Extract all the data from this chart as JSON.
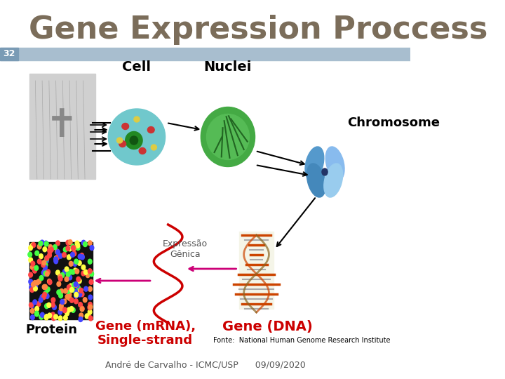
{
  "title": "Gene Expression Proccess",
  "title_color": "#7B6D5A",
  "title_fontsize": 32,
  "slide_number": "32",
  "slide_number_bg": "#7A9BB5",
  "slide_number_color": "white",
  "header_bar_color": "#A8BECF",
  "label_cell": "Cell",
  "label_nuclei": "Nuclei",
  "label_chromosome": "Chromosome",
  "label_expressao": "Expressão\nGênica",
  "label_protein": "Protein",
  "label_mrna": "Gene (mRNA),\nSingle-strand",
  "label_dna": "Gene (DNA)",
  "label_fonte": "Fonte:  National Human Genome Research Institute",
  "label_footer": "André de Carvalho - ICMC/USP      09/09/2020",
  "bg_color": "#FFFFFF",
  "arrow_color_black": "#000000",
  "arrow_color_magenta": "#CC0077",
  "mrna_color": "#CC0000",
  "dna_label_color": "#CC0000",
  "protein_label_color": "#000000",
  "expressao_color": "#555555"
}
